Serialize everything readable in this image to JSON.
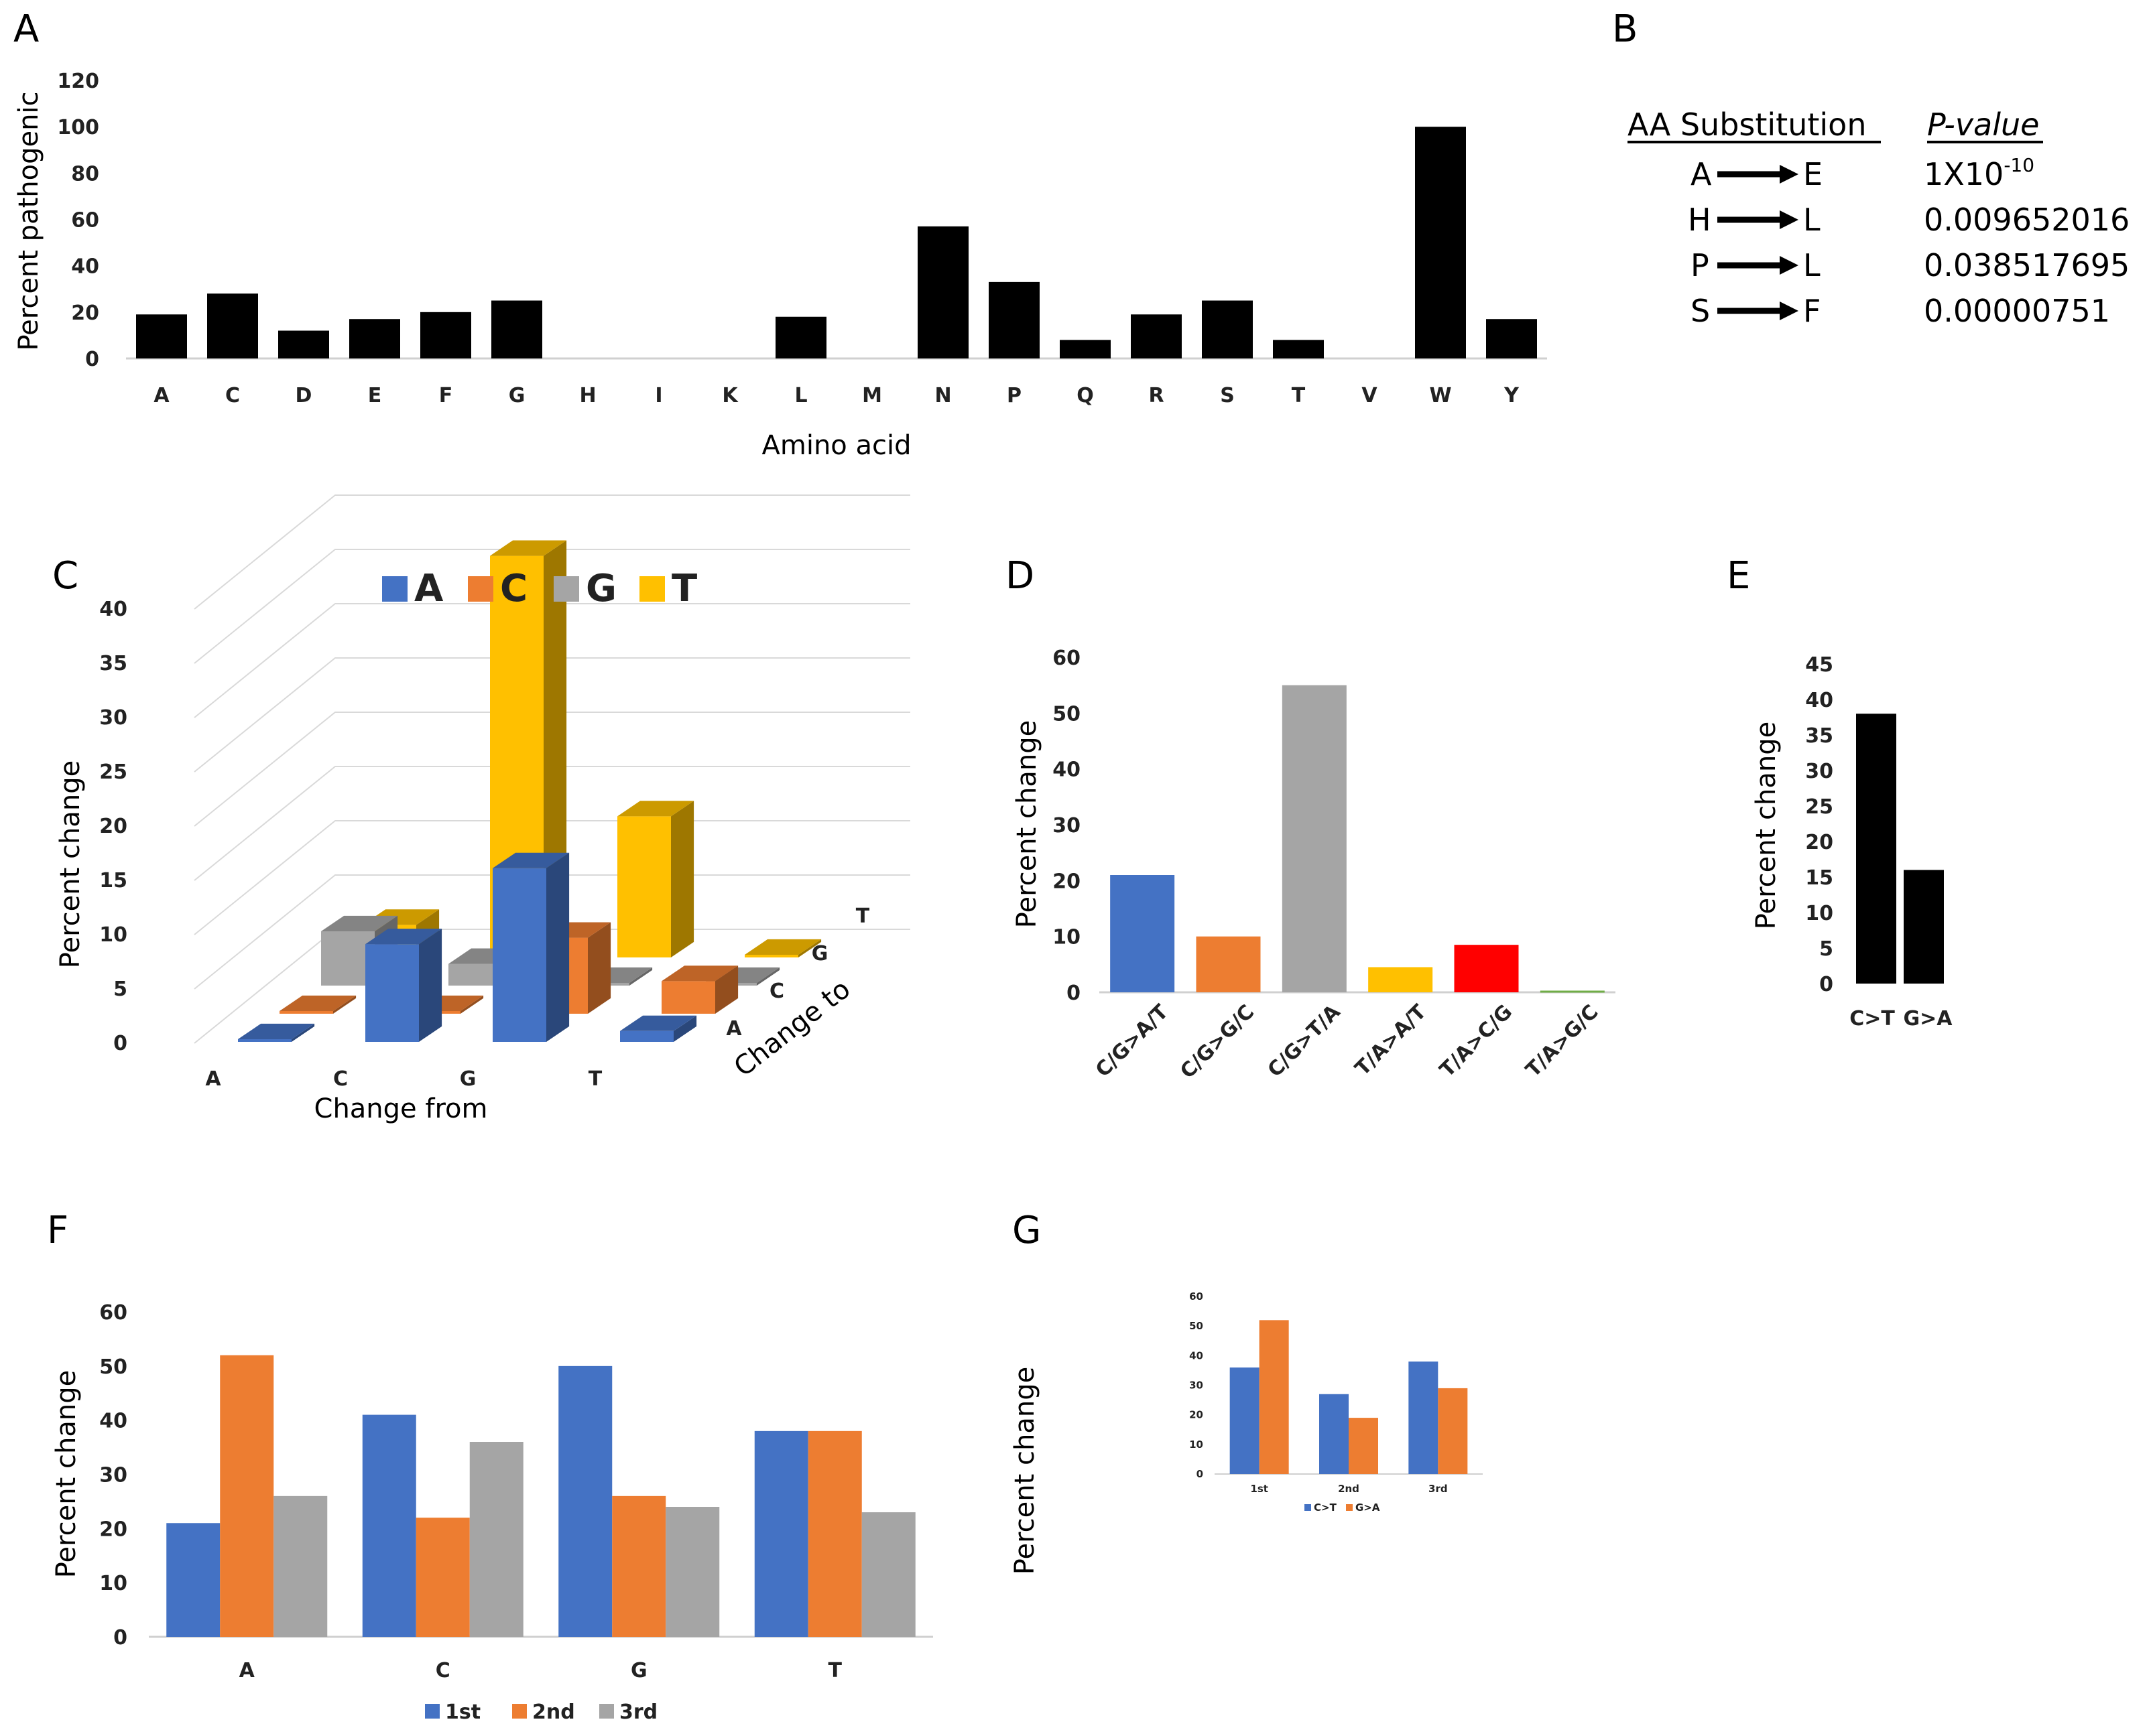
{
  "panel_labels": [
    "A",
    "B",
    "C",
    "D",
    "E",
    "F",
    "G"
  ],
  "colors": {
    "blue": "#4472C4",
    "orange": "#ED7D31",
    "gray": "#A5A5A5",
    "yellow": "#FFC000",
    "red": "#FF0000",
    "green": "#70AD47",
    "black": "#000000"
  },
  "chart_data": [
    {
      "id": "A",
      "type": "bar",
      "categories": [
        "A",
        "C",
        "D",
        "E",
        "F",
        "G",
        "H",
        "I",
        "K",
        "L",
        "M",
        "N",
        "P",
        "Q",
        "R",
        "S",
        "T",
        "V",
        "W",
        "Y"
      ],
      "values": [
        19,
        28,
        12,
        17,
        20,
        25,
        0,
        0,
        0,
        18,
        0,
        57,
        33,
        8,
        19,
        25,
        8,
        0,
        100,
        17
      ],
      "ylabel": "Percent pathogenic",
      "xlabel": "Amino acid",
      "ylim": [
        0,
        120
      ],
      "yticks": [
        0,
        20,
        40,
        60,
        80,
        100,
        120
      ]
    },
    {
      "id": "B",
      "type": "table",
      "headers": [
        "AA Substitution",
        "P-value"
      ],
      "rows": [
        {
          "from": "A",
          "to": "E",
          "p_base": "1X10",
          "p_exp": "-10"
        },
        {
          "from": "H",
          "to": "L",
          "p_base": "0.009652016",
          "p_exp": ""
        },
        {
          "from": "P",
          "to": "L",
          "p_base": "0.038517695",
          "p_exp": ""
        },
        {
          "from": "S",
          "to": "F",
          "p_base": "0.00000751",
          "p_exp": ""
        }
      ]
    },
    {
      "id": "C",
      "type": "bar",
      "from_categories": [
        "A",
        "C",
        "G",
        "T"
      ],
      "to_categories": [
        "A",
        "C",
        "G",
        "T"
      ],
      "series": [
        {
          "name": "A",
          "color": "#4472C4",
          "values": [
            0,
            9,
            16,
            1
          ]
        },
        {
          "name": "C",
          "color": "#ED7D31",
          "values": [
            0,
            0,
            7,
            3
          ]
        },
        {
          "name": "G",
          "color": "#A5A5A5",
          "values": [
            5,
            2,
            0,
            0
          ]
        },
        {
          "name": "T",
          "color": "#FFC000",
          "values": [
            3,
            37,
            13,
            0
          ]
        }
      ],
      "ylabel": "Percent change",
      "xlabel": "Change from",
      "zlabel": "Change to",
      "ylim": [
        0,
        40
      ],
      "yticks": [
        0,
        5,
        10,
        15,
        20,
        25,
        30,
        35,
        40
      ]
    },
    {
      "id": "D",
      "type": "bar",
      "categories": [
        "C/G>A/T",
        "C/G>G/C",
        "C/G>T/A",
        "T/A>A/T",
        "T/A>C/G",
        "T/A>G/C"
      ],
      "values": [
        21,
        10,
        55,
        4.5,
        8.5,
        0.3
      ],
      "colors": [
        "#4472C4",
        "#ED7D31",
        "#A5A5A5",
        "#FFC000",
        "#FF0000",
        "#70AD47"
      ],
      "ylabel": "Percent change",
      "ylim": [
        0,
        60
      ],
      "yticks": [
        0,
        10,
        20,
        30,
        40,
        50,
        60
      ]
    },
    {
      "id": "E",
      "type": "bar",
      "categories": [
        "C>T",
        "G>A"
      ],
      "values": [
        38,
        16
      ],
      "ylabel": "Percent change",
      "ylim": [
        0,
        45
      ],
      "yticks": [
        0,
        5,
        10,
        15,
        20,
        25,
        30,
        35,
        40,
        45
      ]
    },
    {
      "id": "F",
      "type": "bar",
      "categories": [
        "A",
        "C",
        "G",
        "T"
      ],
      "series": [
        {
          "name": "1st",
          "color": "#4472C4",
          "values": [
            21,
            41,
            50,
            38
          ]
        },
        {
          "name": "2nd",
          "color": "#ED7D31",
          "values": [
            52,
            22,
            26,
            38
          ]
        },
        {
          "name": "3rd",
          "color": "#A5A5A5",
          "values": [
            26,
            36,
            24,
            23
          ]
        }
      ],
      "ylabel": "Percent change",
      "ylim": [
        0,
        60
      ],
      "yticks": [
        0,
        10,
        20,
        30,
        40,
        50,
        60
      ]
    },
    {
      "id": "G",
      "type": "bar",
      "categories": [
        "1st",
        "2nd",
        "3rd"
      ],
      "series": [
        {
          "name": "C>T",
          "color": "#4472C4",
          "values": [
            36,
            27,
            38
          ]
        },
        {
          "name": "G>A",
          "color": "#ED7D31",
          "values": [
            52,
            19,
            29
          ]
        }
      ],
      "ylabel": "Percent change",
      "ylim": [
        0,
        60
      ],
      "yticks": [
        0,
        10,
        20,
        30,
        40,
        50,
        60
      ]
    }
  ]
}
